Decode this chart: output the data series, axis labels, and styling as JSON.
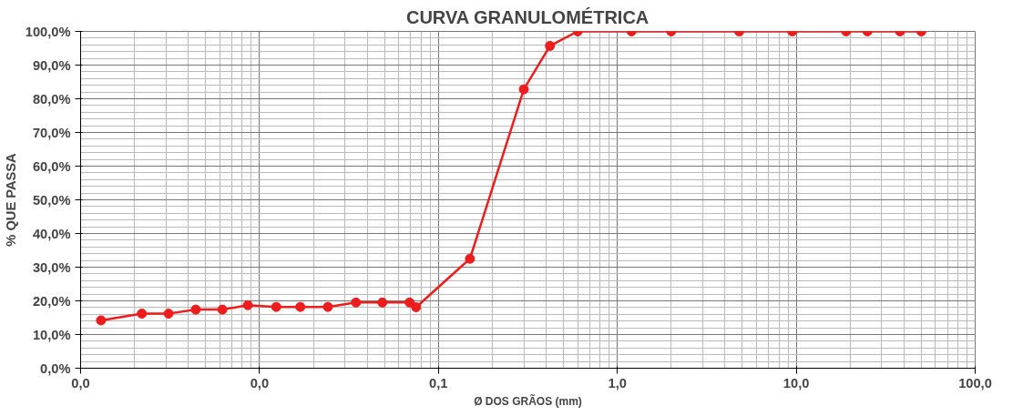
{
  "chart_data": {
    "type": "line",
    "title": "CURVA GRANULOMÉTRICA",
    "xlabel": "Ø DOS GRÃOS (mm)",
    "ylabel": "% QUE PASSA",
    "log": "x",
    "grid": true,
    "marker": "circle",
    "line_style": "solid",
    "xlim": [
      0.001,
      100
    ],
    "xticks": [
      {
        "value": 0.001,
        "label": "0,0"
      },
      {
        "value": 0.01,
        "label": "0,0"
      },
      {
        "value": 0.1,
        "label": "0,1"
      },
      {
        "value": 1,
        "label": "1,0"
      },
      {
        "value": 10,
        "label": "10,0"
      },
      {
        "value": 100,
        "label": "100,0"
      }
    ],
    "ylim": [
      0,
      100
    ],
    "yticks": [
      {
        "value": 0,
        "label": "0,0%"
      },
      {
        "value": 10,
        "label": "10,0%"
      },
      {
        "value": 20,
        "label": "20,0%"
      },
      {
        "value": 30,
        "label": "30,0%"
      },
      {
        "value": 40,
        "label": "40,0%"
      },
      {
        "value": 50,
        "label": "50,0%"
      },
      {
        "value": 60,
        "label": "60,0%"
      },
      {
        "value": 70,
        "label": "70,0%"
      },
      {
        "value": 80,
        "label": "80,0%"
      },
      {
        "value": 90,
        "label": "90,0%"
      },
      {
        "value": 100,
        "label": "100,0%"
      }
    ],
    "series": [
      {
        "color": "#ee1c1c",
        "x": [
          0.0013,
          0.0022,
          0.0031,
          0.0044,
          0.0062,
          0.0086,
          0.0124,
          0.0169,
          0.0241,
          0.0346,
          0.0486,
          0.069,
          0.075,
          0.15,
          0.3,
          0.42,
          0.6,
          1.2,
          2.0,
          4.8,
          9.5,
          19,
          25,
          38,
          50
        ],
        "values": [
          14.2,
          16.2,
          16.2,
          17.4,
          17.4,
          18.7,
          18.2,
          18.2,
          18.2,
          19.5,
          19.5,
          19.5,
          18.1,
          32.5,
          82.8,
          95.7,
          100,
          100,
          100,
          100,
          100,
          100,
          100,
          100,
          100
        ]
      }
    ]
  }
}
